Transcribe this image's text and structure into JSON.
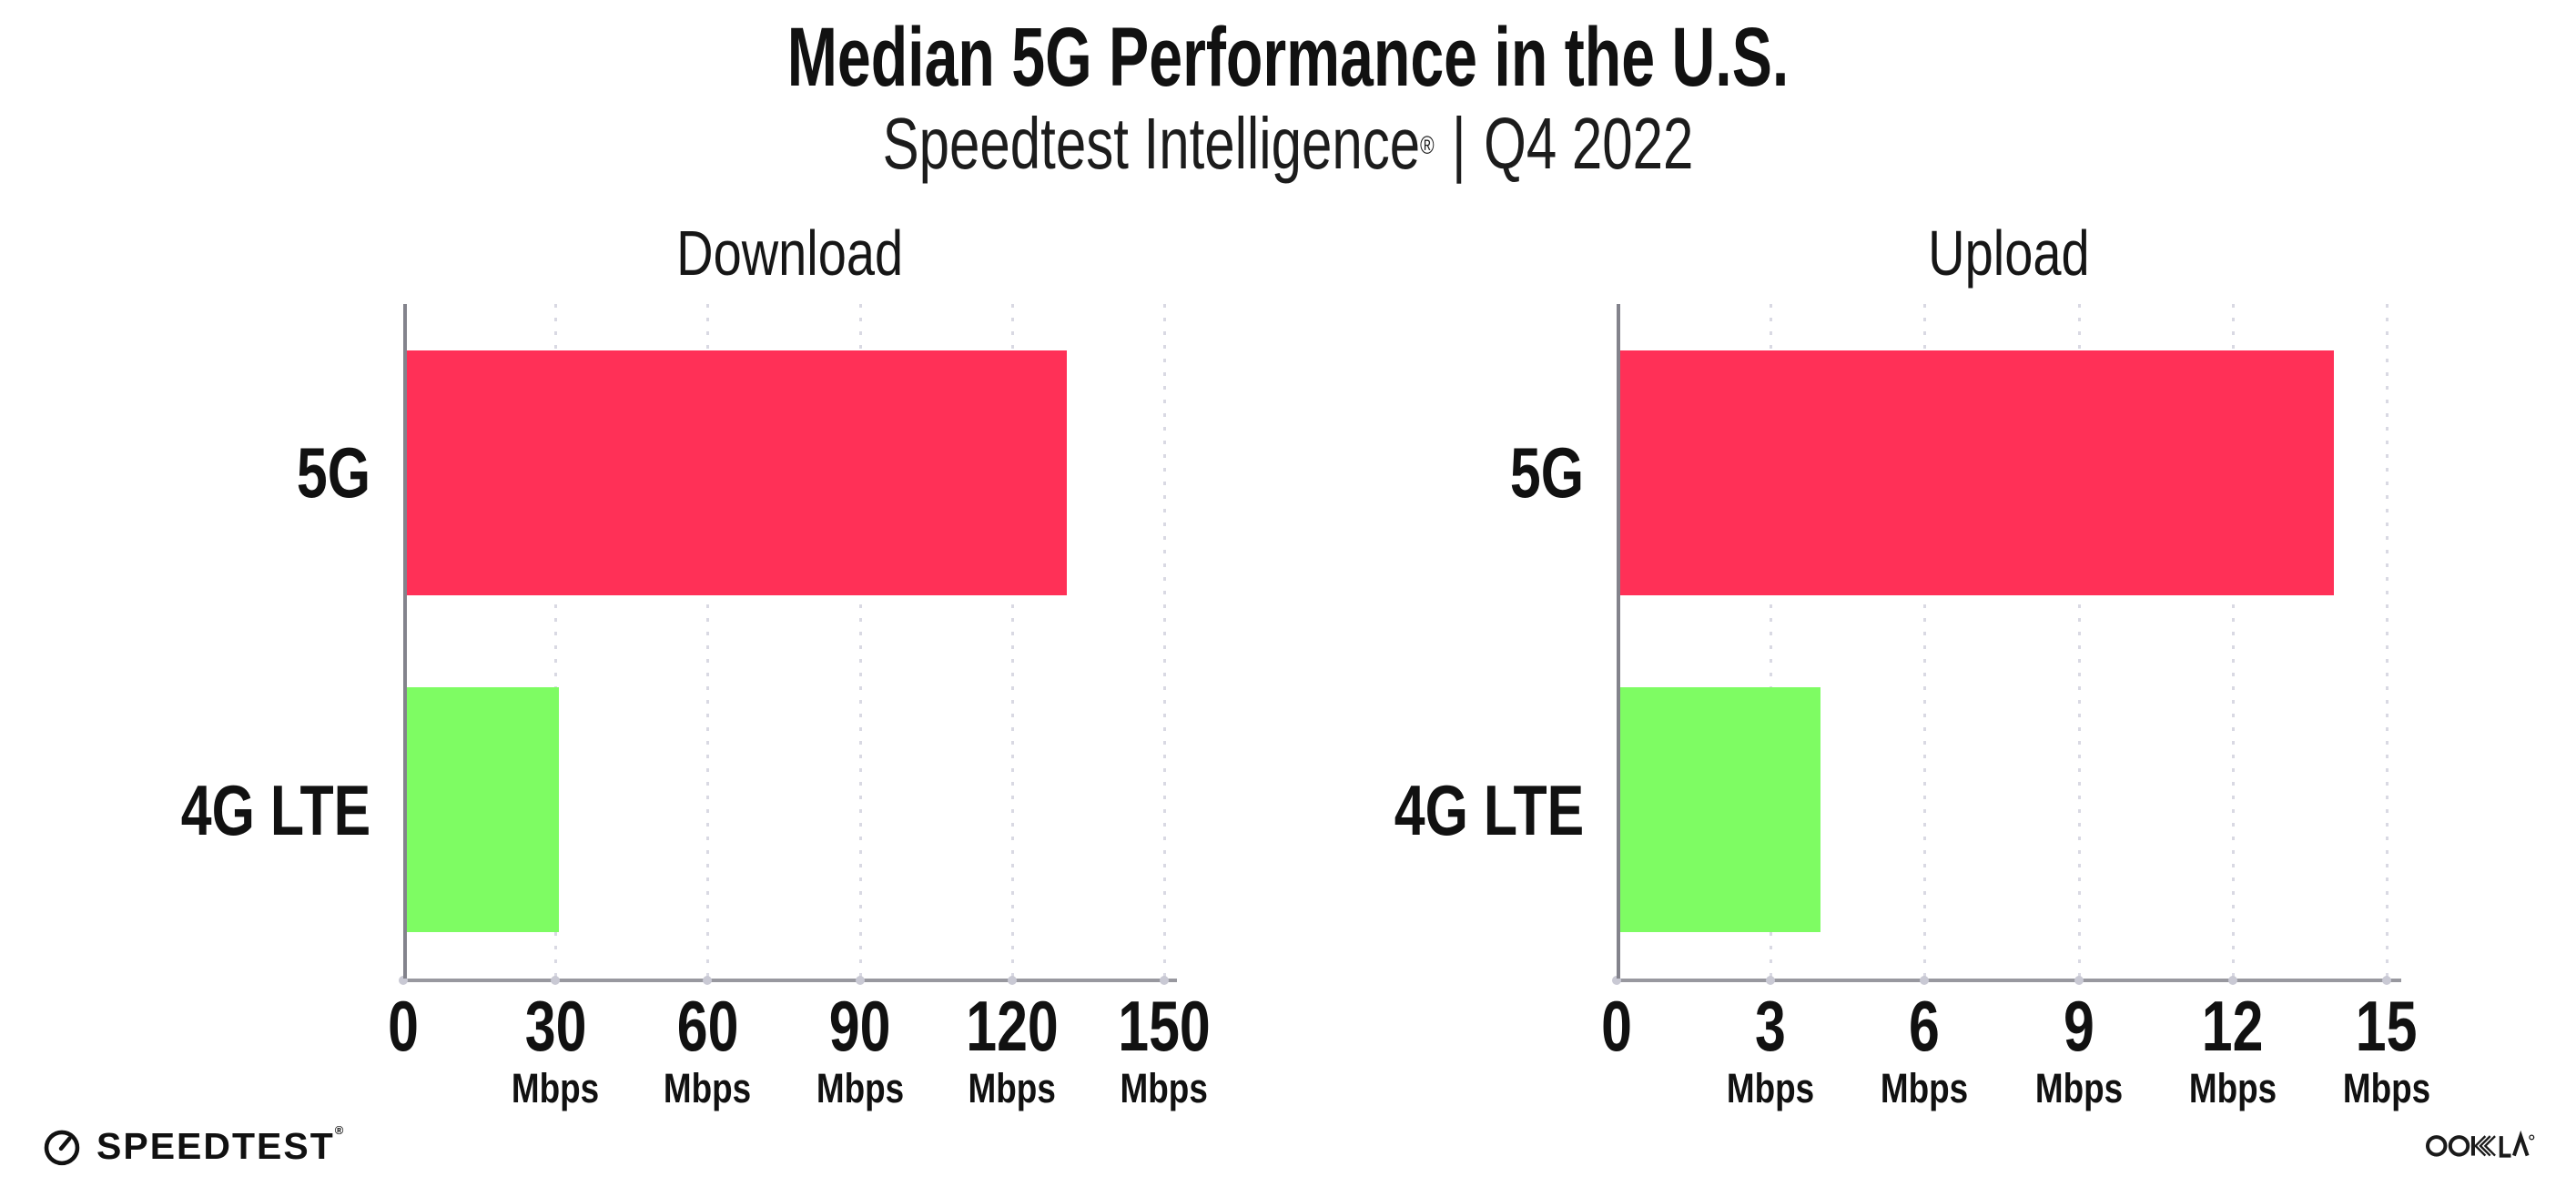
{
  "header": {
    "title": "Median 5G Performance in the U.S.",
    "subtitle": {
      "brand": "Speedtest Intelligence",
      "reg_mark": "®",
      "separator": "|",
      "period": "Q4 2022"
    }
  },
  "chart_data": [
    {
      "type": "bar",
      "orientation": "horizontal",
      "title": "Download",
      "categories": [
        "5G",
        "4G LTE"
      ],
      "values": [
        130,
        30
      ],
      "unit": "Mbps",
      "xticks": [
        0,
        30,
        60,
        90,
        120,
        150
      ],
      "xlim": [
        0,
        150
      ],
      "bar_colors": [
        "#FF3057",
        "#7EFC63"
      ],
      "grid": "vertical-dotted",
      "legend": "none"
    },
    {
      "type": "bar",
      "orientation": "horizontal",
      "title": "Upload",
      "categories": [
        "5G",
        "4G LTE"
      ],
      "values": [
        13.9,
        3.9
      ],
      "unit": "Mbps",
      "xticks": [
        0,
        3,
        6,
        9,
        12,
        15
      ],
      "xlim": [
        0,
        15
      ],
      "bar_colors": [
        "#FF3057",
        "#7EFC63"
      ],
      "grid": "vertical-dotted",
      "legend": "none"
    }
  ],
  "colors": {
    "bar_5g": "#FF3057",
    "bar_4g_lte": "#7EFC63",
    "gridline": "#D9D9E3",
    "axis": "#8B8B93",
    "text": "#111111",
    "background": "#FFFFFF"
  },
  "footer": {
    "speedtest_label": "SPEEDTEST",
    "speedtest_reg": "®",
    "ookla_label": "OOKLA"
  }
}
